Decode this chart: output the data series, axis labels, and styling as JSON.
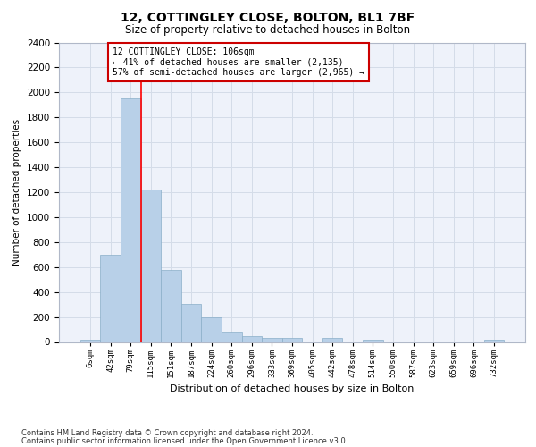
{
  "title1": "12, COTTINGLEY CLOSE, BOLTON, BL1 7BF",
  "title2": "Size of property relative to detached houses in Bolton",
  "xlabel": "Distribution of detached houses by size in Bolton",
  "ylabel": "Number of detached properties",
  "footer1": "Contains HM Land Registry data © Crown copyright and database right 2024.",
  "footer2": "Contains public sector information licensed under the Open Government Licence v3.0.",
  "bin_labels": [
    "6sqm",
    "42sqm",
    "79sqm",
    "115sqm",
    "151sqm",
    "187sqm",
    "224sqm",
    "260sqm",
    "296sqm",
    "333sqm",
    "369sqm",
    "405sqm",
    "442sqm",
    "478sqm",
    "514sqm",
    "550sqm",
    "587sqm",
    "623sqm",
    "659sqm",
    "696sqm",
    "732sqm"
  ],
  "bar_values": [
    15,
    700,
    1950,
    1225,
    575,
    305,
    200,
    80,
    45,
    35,
    35,
    0,
    30,
    0,
    20,
    0,
    0,
    0,
    0,
    0,
    15
  ],
  "bar_color": "#b8d0e8",
  "bar_edge_color": "#8aaec8",
  "red_line_bin_index": 3,
  "property_label": "12 COTTINGLEY CLOSE: 106sqm",
  "annotation_line1": "← 41% of detached houses are smaller (2,135)",
  "annotation_line2": "57% of semi-detached houses are larger (2,965) →",
  "annotation_box_color": "#cc0000",
  "ylim": [
    0,
    2400
  ],
  "yticks": [
    0,
    200,
    400,
    600,
    800,
    1000,
    1200,
    1400,
    1600,
    1800,
    2000,
    2200,
    2400
  ],
  "grid_color": "#d4dce8",
  "background_color": "#eef2fa"
}
